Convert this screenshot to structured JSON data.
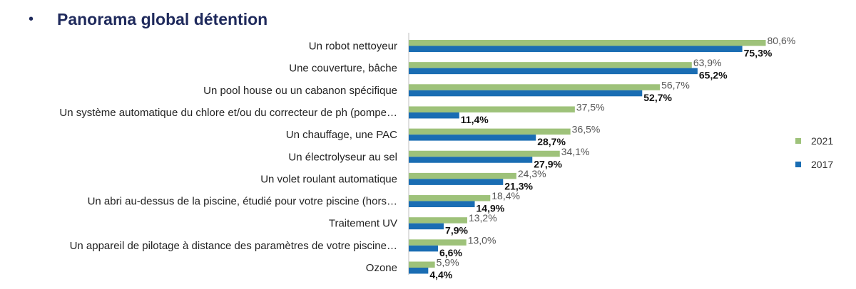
{
  "header": {
    "bullet": "•",
    "title": "Panorama global détention"
  },
  "colors": {
    "series_2021": "#9ec27a",
    "series_2017": "#1a6db3",
    "axis": "#bfbfbf"
  },
  "chart_data": {
    "type": "bar",
    "orientation": "horizontal",
    "title": "Panorama global détention",
    "categories": [
      "Un robot nettoyeur",
      "Une couverture, bâche",
      "Un pool house ou un cabanon spécifique",
      "Un système automatique du chlore et/ou du correcteur de ph (pompe…",
      "Un chauffage, une PAC",
      "Un électrolyseur au sel",
      "Un volet roulant automatique",
      "Un abri au-dessus de la piscine, étudié pour votre piscine (hors…",
      "Traitement UV",
      "Un appareil de pilotage à distance des paramètres de votre piscine…",
      "Ozone"
    ],
    "series": [
      {
        "name": "2021",
        "values": [
          80.6,
          63.9,
          56.7,
          37.5,
          36.5,
          34.1,
          24.3,
          18.4,
          13.2,
          13.0,
          5.9
        ],
        "labels": [
          "80,6%",
          "63,9%",
          "56,7%",
          "37,5%",
          "36,5%",
          "34,1%",
          "24,3%",
          "18,4%",
          "13,2%",
          "13,0%",
          "5,9%"
        ]
      },
      {
        "name": "2017",
        "values": [
          75.3,
          65.2,
          52.7,
          11.4,
          28.7,
          27.9,
          21.3,
          14.9,
          7.9,
          6.6,
          4.4
        ],
        "labels": [
          "75,3%",
          "65,2%",
          "52,7%",
          "11,4%",
          "28,7%",
          "27,9%",
          "21,3%",
          "14,9%",
          "7,9%",
          "6,6%",
          "4,4%"
        ]
      }
    ],
    "legend": {
      "placement": "right",
      "entries": [
        "2021",
        "2017"
      ]
    },
    "grid": false
  }
}
